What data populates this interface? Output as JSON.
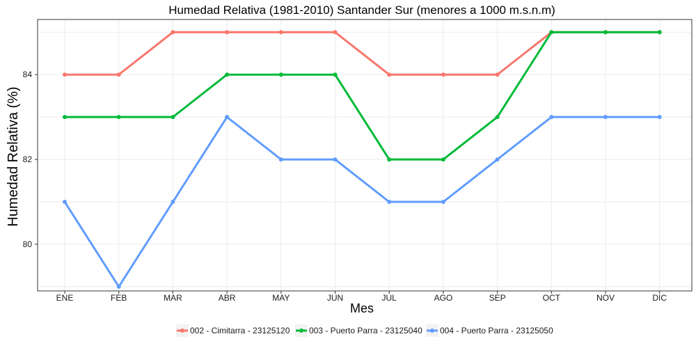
{
  "chart_data": {
    "type": "line",
    "title": "Humedad Relativa (1981-2010) Santander Sur (menores a 1000 m.s.n.m)",
    "xlabel": "Mes",
    "ylabel": "Humedad Relativa (%)",
    "categories": [
      "ENE",
      "FEB",
      "MAR",
      "ABR",
      "MAY",
      "JUN",
      "JUL",
      "AGO",
      "SEP",
      "OCT",
      "NOV",
      "DIC"
    ],
    "yticks": [
      80,
      82,
      84
    ],
    "ylim": [
      78.9,
      85.3
    ],
    "grid": true,
    "legend_position": "bottom",
    "series": [
      {
        "name": "002 - Cimitarra - 23125120",
        "color": "#F8766D",
        "values": [
          84,
          84,
          85,
          85,
          85,
          85,
          84,
          84,
          84,
          85,
          85,
          85
        ]
      },
      {
        "name": "003 - Puerto Parra - 23125040",
        "color": "#00BA38",
        "values": [
          83,
          83,
          83,
          84,
          84,
          84,
          82,
          82,
          83,
          85,
          85,
          85
        ]
      },
      {
        "name": "004 - Puerto Parra - 23125050",
        "color": "#619CFF",
        "values": [
          81,
          79,
          81,
          83,
          82,
          82,
          81,
          81,
          82,
          83,
          83,
          83
        ]
      }
    ]
  }
}
